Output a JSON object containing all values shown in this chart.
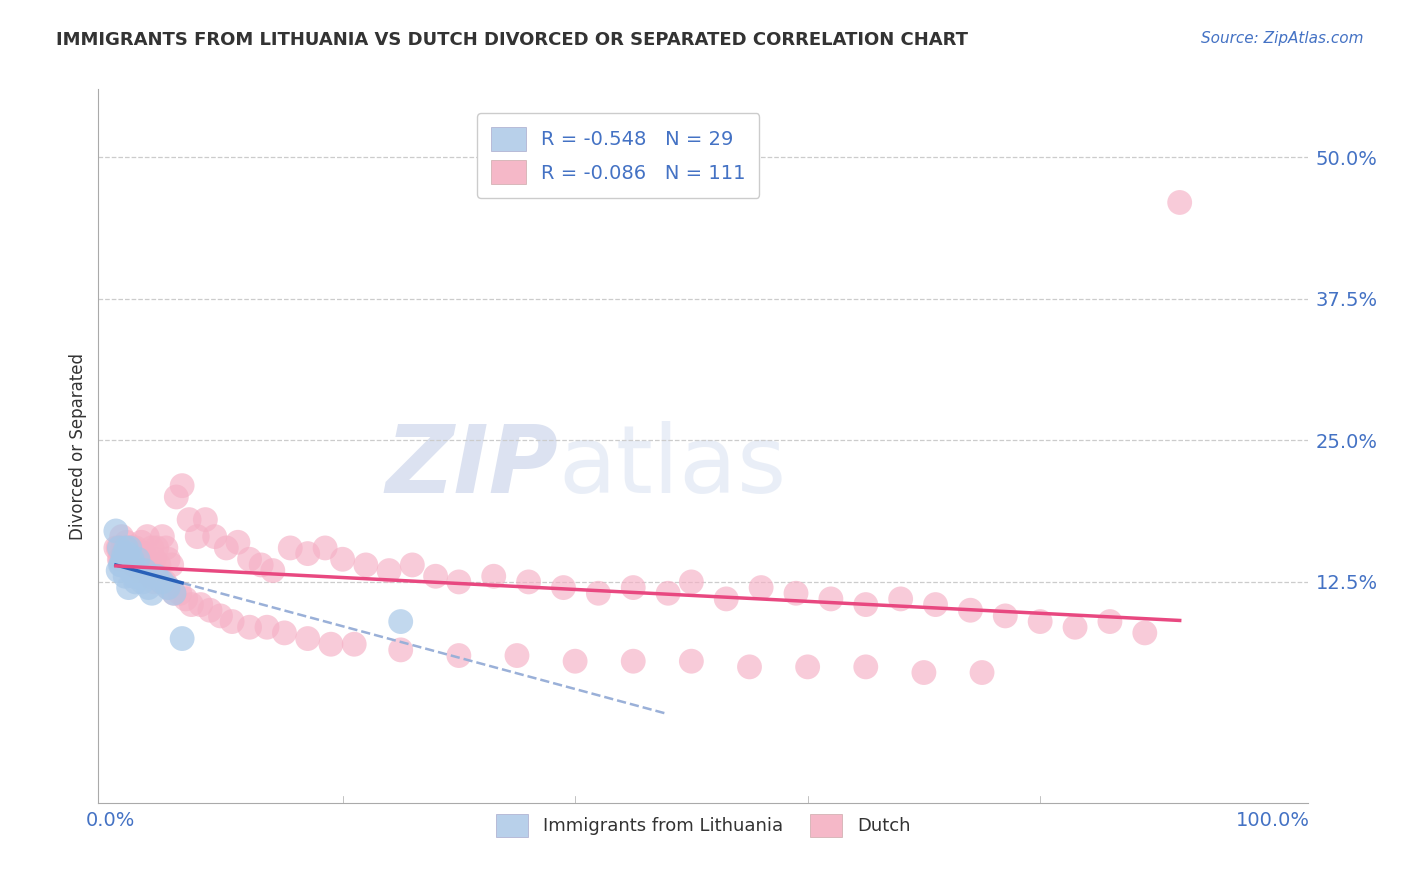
{
  "title": "IMMIGRANTS FROM LITHUANIA VS DUTCH DIVORCED OR SEPARATED CORRELATION CHART",
  "source_text": "Source: ZipAtlas.com",
  "ylabel": "Divorced or Separated",
  "watermark_zip": "ZIP",
  "watermark_atlas": "atlas",
  "legend_entries": [
    {
      "label": "R = -0.548   N = 29",
      "color": "#b8d0ea"
    },
    {
      "label": "R = -0.086   N = 111",
      "color": "#f5b8c8"
    }
  ],
  "legend_labels_bottom": [
    "Immigrants from Lithuania",
    "Dutch"
  ],
  "xlim": [
    -0.01,
    1.03
  ],
  "ylim": [
    -0.07,
    0.56
  ],
  "yticks": [
    0.125,
    0.25,
    0.375,
    0.5
  ],
  "ytick_labels": [
    "12.5%",
    "25.0%",
    "37.5%",
    "50.0%"
  ],
  "grid_color": "#cccccc",
  "background_color": "#ffffff",
  "blue_scatter_color": "#a8c8e8",
  "pink_scatter_color": "#f5b0c5",
  "blue_line_color": "#2860b8",
  "pink_line_color": "#e84880",
  "blue_dashed_color": "#9ab0d8",
  "tick_color": "#4472c4",
  "title_color": "#333333",
  "source_color": "#4472c4",
  "blue_x": [
    0.005,
    0.007,
    0.008,
    0.009,
    0.01,
    0.011,
    0.012,
    0.013,
    0.014,
    0.015,
    0.016,
    0.017,
    0.018,
    0.019,
    0.02,
    0.021,
    0.022,
    0.024,
    0.025,
    0.028,
    0.03,
    0.033,
    0.036,
    0.04,
    0.045,
    0.05,
    0.055,
    0.062,
    0.25
  ],
  "blue_y": [
    0.17,
    0.135,
    0.155,
    0.14,
    0.14,
    0.145,
    0.15,
    0.13,
    0.155,
    0.15,
    0.12,
    0.155,
    0.135,
    0.145,
    0.14,
    0.13,
    0.125,
    0.145,
    0.13,
    0.125,
    0.135,
    0.12,
    0.115,
    0.13,
    0.125,
    0.12,
    0.115,
    0.075,
    0.09
  ],
  "pink_x": [
    0.007,
    0.009,
    0.01,
    0.012,
    0.013,
    0.014,
    0.015,
    0.016,
    0.017,
    0.018,
    0.019,
    0.02,
    0.021,
    0.022,
    0.024,
    0.025,
    0.027,
    0.029,
    0.03,
    0.032,
    0.034,
    0.036,
    0.038,
    0.04,
    0.042,
    0.045,
    0.048,
    0.05,
    0.053,
    0.057,
    0.062,
    0.068,
    0.075,
    0.082,
    0.09,
    0.1,
    0.11,
    0.12,
    0.13,
    0.14,
    0.155,
    0.17,
    0.185,
    0.2,
    0.22,
    0.24,
    0.26,
    0.28,
    0.3,
    0.33,
    0.36,
    0.39,
    0.42,
    0.45,
    0.48,
    0.5,
    0.53,
    0.56,
    0.59,
    0.62,
    0.65,
    0.68,
    0.71,
    0.74,
    0.77,
    0.8,
    0.83,
    0.86,
    0.89,
    0.005,
    0.008,
    0.011,
    0.014,
    0.017,
    0.02,
    0.023,
    0.026,
    0.029,
    0.032,
    0.035,
    0.038,
    0.041,
    0.044,
    0.047,
    0.05,
    0.055,
    0.06,
    0.065,
    0.07,
    0.078,
    0.086,
    0.095,
    0.105,
    0.12,
    0.135,
    0.15,
    0.17,
    0.19,
    0.21,
    0.25,
    0.3,
    0.35,
    0.4,
    0.45,
    0.5,
    0.55,
    0.6,
    0.65,
    0.7,
    0.75,
    0.92
  ],
  "pink_y": [
    0.155,
    0.145,
    0.165,
    0.145,
    0.155,
    0.16,
    0.145,
    0.15,
    0.155,
    0.145,
    0.155,
    0.15,
    0.14,
    0.155,
    0.145,
    0.14,
    0.16,
    0.15,
    0.145,
    0.165,
    0.14,
    0.155,
    0.145,
    0.155,
    0.14,
    0.165,
    0.155,
    0.145,
    0.14,
    0.2,
    0.21,
    0.18,
    0.165,
    0.18,
    0.165,
    0.155,
    0.16,
    0.145,
    0.14,
    0.135,
    0.155,
    0.15,
    0.155,
    0.145,
    0.14,
    0.135,
    0.14,
    0.13,
    0.125,
    0.13,
    0.125,
    0.12,
    0.115,
    0.12,
    0.115,
    0.125,
    0.11,
    0.12,
    0.115,
    0.11,
    0.105,
    0.11,
    0.105,
    0.1,
    0.095,
    0.09,
    0.085,
    0.09,
    0.08,
    0.155,
    0.145,
    0.155,
    0.15,
    0.145,
    0.14,
    0.145,
    0.135,
    0.14,
    0.135,
    0.13,
    0.125,
    0.13,
    0.125,
    0.125,
    0.12,
    0.115,
    0.115,
    0.11,
    0.105,
    0.105,
    0.1,
    0.095,
    0.09,
    0.085,
    0.085,
    0.08,
    0.075,
    0.07,
    0.07,
    0.065,
    0.06,
    0.06,
    0.055,
    0.055,
    0.055,
    0.05,
    0.05,
    0.05,
    0.045,
    0.045,
    0.46
  ]
}
